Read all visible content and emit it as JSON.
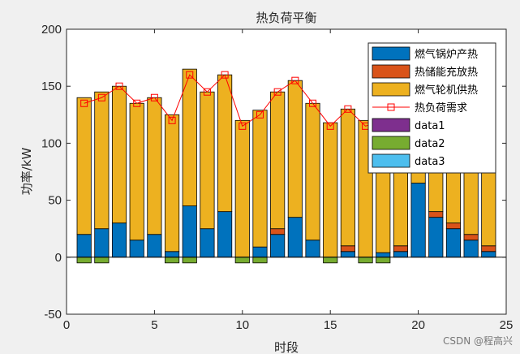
{
  "chart_data": {
    "type": "bar",
    "title": "热负荷平衡",
    "xlabel": "时段",
    "ylabel": "功率/kW",
    "xlim": [
      0,
      25
    ],
    "ylim": [
      -50,
      200
    ],
    "xticks": [
      0,
      5,
      10,
      15,
      20,
      25
    ],
    "yticks": [
      -50,
      0,
      50,
      100,
      150,
      200
    ],
    "legend_position": "top-right",
    "x": [
      1,
      2,
      3,
      4,
      5,
      6,
      7,
      8,
      9,
      10,
      11,
      12,
      13,
      14,
      15,
      16,
      17,
      18,
      19,
      20,
      21,
      22,
      23,
      24
    ],
    "series": [
      {
        "name": "燃气锅炉产热",
        "color": "#0072bd",
        "stack": "pos",
        "values": [
          20,
          25,
          30,
          15,
          20,
          5,
          45,
          25,
          40,
          0,
          9,
          20,
          35,
          15,
          0,
          5,
          0,
          4,
          5,
          65,
          35,
          25,
          15,
          5
        ]
      },
      {
        "name": "热储能充放热",
        "color": "#d95319",
        "stack": "pos",
        "values": [
          0,
          0,
          0,
          0,
          0,
          0,
          0,
          0,
          0,
          0,
          0,
          5,
          0,
          0,
          0,
          5,
          0,
          0,
          5,
          0,
          5,
          5,
          5,
          5
        ]
      },
      {
        "name": "燃气轮机供热",
        "color": "#edb120",
        "stack": "pos",
        "values": [
          120,
          120,
          120,
          120,
          120,
          120,
          120,
          120,
          120,
          120,
          120,
          120,
          120,
          120,
          118,
          120,
          120,
          115,
          80,
          35,
          60,
          70,
          70,
          75
        ]
      },
      {
        "name": "热负荷需求",
        "color": "#ff0000",
        "type": "line",
        "values": [
          135,
          140,
          150,
          135,
          140,
          120,
          160,
          145,
          160,
          115,
          125,
          145,
          155,
          135,
          115,
          130,
          115,
          120,
          95,
          100,
          100,
          100,
          90,
          85
        ]
      },
      {
        "name": "data1",
        "color": "#7e2f8e",
        "stack": "neg",
        "values": [
          0,
          0,
          0,
          0,
          0,
          0,
          0,
          0,
          0,
          0,
          0,
          0,
          0,
          0,
          0,
          0,
          0,
          0,
          0,
          0,
          0,
          0,
          0,
          0
        ]
      },
      {
        "name": "data2",
        "color": "#77ac30",
        "stack": "neg",
        "values": [
          -5,
          -5,
          0,
          0,
          0,
          -5,
          -5,
          0,
          0,
          -5,
          -5,
          0,
          0,
          0,
          -5,
          0,
          -5,
          -5,
          0,
          0,
          0,
          0,
          0,
          0
        ]
      },
      {
        "name": "data3",
        "color": "#4dbeee",
        "stack": "neg",
        "values": [
          0,
          0,
          0,
          0,
          0,
          0,
          0,
          0,
          0,
          0,
          0,
          0,
          0,
          0,
          0,
          0,
          0,
          0,
          0,
          0,
          0,
          0,
          0,
          0
        ]
      }
    ]
  },
  "watermark": "CSDN @程高兴"
}
